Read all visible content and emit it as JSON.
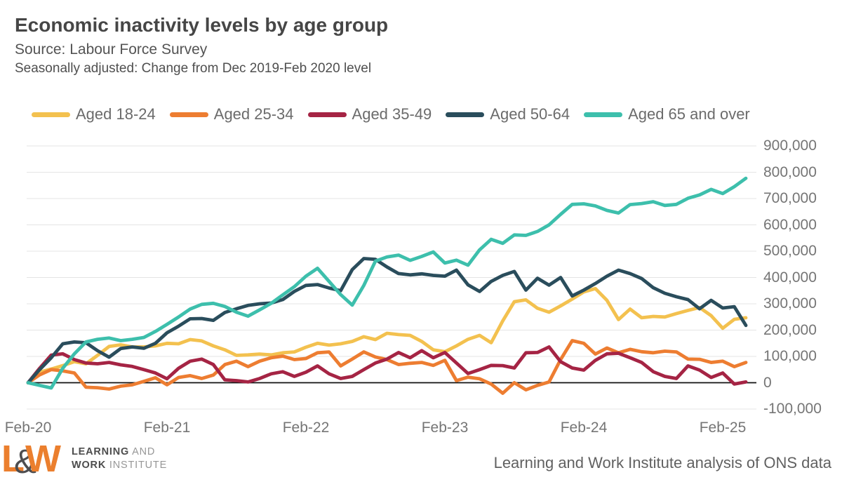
{
  "header": {
    "title": "Economic inactivity levels by age group",
    "subtitle1": "Source: Labour Force Survey",
    "subtitle2": "Seasonally adjusted: Change from Dec 2019-Feb 2020 level"
  },
  "footer": {
    "logo": {
      "letter_l": "L",
      "ampersand": "&",
      "letter_w": "W",
      "line1_bold": "LEARNING",
      "line1_light": " AND",
      "line2_bold": "WORK",
      "line2_light": " INSTITUTE"
    },
    "attribution": "Learning and Work Institute analysis of ONS data"
  },
  "chart_data": {
    "type": "line",
    "title": "Economic inactivity levels by age group",
    "subtitle": "Seasonally adjusted: Change from Dec 2019-Feb 2020 level",
    "values_unit": "persons, change from Dec 2019-Feb 2020 level",
    "x_unit": "months, Feb-2020 to Apr-2025 (one value per month)",
    "x_tick_labels": [
      "Feb-20",
      "Feb-21",
      "Feb-22",
      "Feb-23",
      "Feb-24",
      "Feb-25"
    ],
    "x_tick_month_indices": [
      0,
      12,
      24,
      36,
      48,
      60
    ],
    "ylim": [
      -100000,
      900000
    ],
    "y_tick_step": 100000,
    "y_tick_labels": [
      "900,000",
      "800,000",
      "700,000",
      "600,000",
      "500,000",
      "400,000",
      "300,000",
      "200,000",
      "100,000",
      "0",
      "-100,000"
    ],
    "grid": true,
    "legend_position": "top",
    "colors": {
      "gridline": "#E4E4E4",
      "zero_line": "#111111",
      "axis_text": "#757575",
      "background": "#FFFFFF"
    },
    "series": [
      {
        "name": "Aged 18-24",
        "color": "#F3C14F",
        "values": [
          0,
          40000,
          52000,
          65000,
          80000,
          72000,
          104000,
          138000,
          144000,
          136000,
          136000,
          140000,
          150000,
          148000,
          164000,
          159000,
          140000,
          125000,
          104000,
          106000,
          109000,
          106000,
          114000,
          117000,
          135000,
          150000,
          143000,
          148000,
          157000,
          175000,
          164000,
          188000,
          183000,
          180000,
          157000,
          125000,
          118000,
          140000,
          165000,
          180000,
          152000,
          235000,
          308000,
          315000,
          283000,
          268000,
          292000,
          318000,
          345000,
          358000,
          313000,
          240000,
          280000,
          247000,
          252000,
          250000,
          263000,
          275000,
          286000,
          255000,
          207000,
          241000,
          247000
        ]
      },
      {
        "name": "Aged 25-34",
        "color": "#ED7D31",
        "values": [
          0,
          30000,
          50000,
          45000,
          37000,
          -17000,
          -19000,
          -24000,
          -13000,
          -8000,
          5000,
          19000,
          -8000,
          20000,
          27000,
          16000,
          29000,
          69000,
          82000,
          61000,
          82000,
          95000,
          101000,
          88000,
          92000,
          114000,
          117000,
          64000,
          90000,
          117000,
          98000,
          88000,
          69000,
          74000,
          77000,
          66000,
          85000,
          8000,
          21000,
          15000,
          -5000,
          -40000,
          0,
          -27000,
          -10000,
          3000,
          88000,
          160000,
          150000,
          109000,
          132000,
          114000,
          127000,
          118000,
          114000,
          120000,
          117000,
          90000,
          89000,
          77000,
          82000,
          61000,
          77000
        ]
      },
      {
        "name": "Aged 35-49",
        "color": "#A52444",
        "values": [
          0,
          55000,
          105000,
          110000,
          88000,
          75000,
          72000,
          77000,
          68000,
          62000,
          50000,
          37000,
          15000,
          55000,
          82000,
          90000,
          69000,
          11000,
          8000,
          3000,
          16000,
          34000,
          42000,
          24000,
          40000,
          64000,
          34000,
          16000,
          24000,
          50000,
          75000,
          90000,
          115000,
          95000,
          122000,
          95000,
          115000,
          75000,
          35000,
          50000,
          66000,
          65000,
          56000,
          114000,
          115000,
          136000,
          80000,
          56000,
          48000,
          85000,
          110000,
          112000,
          95000,
          77000,
          42000,
          24000,
          16000,
          64000,
          48000,
          20000,
          37000,
          -5000,
          3000
        ]
      },
      {
        "name": "Aged 50-64",
        "color": "#2A4D5C",
        "values": [
          0,
          50000,
          95000,
          148000,
          155000,
          152000,
          122000,
          97000,
          130000,
          136000,
          131000,
          150000,
          190000,
          215000,
          243000,
          244000,
          237000,
          267000,
          281000,
          294000,
          300000,
          303000,
          316000,
          347000,
          370000,
          373000,
          360000,
          350000,
          430000,
          472000,
          469000,
          440000,
          415000,
          410000,
          414000,
          408000,
          405000,
          428000,
          372000,
          347000,
          385000,
          408000,
          423000,
          352000,
          397000,
          371000,
          400000,
          330000,
          352000,
          377000,
          405000,
          428000,
          415000,
          396000,
          361000,
          340000,
          327000,
          316000,
          281000,
          313000,
          284000,
          289000,
          218000
        ]
      },
      {
        "name": "Aged 65 and over",
        "color": "#3DBFAC",
        "values": [
          0,
          -10000,
          -20000,
          55000,
          110000,
          155000,
          165000,
          170000,
          160000,
          165000,
          172000,
          195000,
          222000,
          250000,
          280000,
          298000,
          302000,
          290000,
          268000,
          253000,
          277000,
          302000,
          334000,
          365000,
          405000,
          435000,
          385000,
          335000,
          295000,
          370000,
          462000,
          478000,
          485000,
          465000,
          480000,
          497000,
          455000,
          466000,
          447000,
          505000,
          545000,
          530000,
          562000,
          560000,
          575000,
          600000,
          640000,
          678000,
          680000,
          672000,
          655000,
          645000,
          677000,
          681000,
          688000,
          674000,
          678000,
          701000,
          714000,
          735000,
          719000,
          745000,
          777000
        ]
      }
    ]
  }
}
